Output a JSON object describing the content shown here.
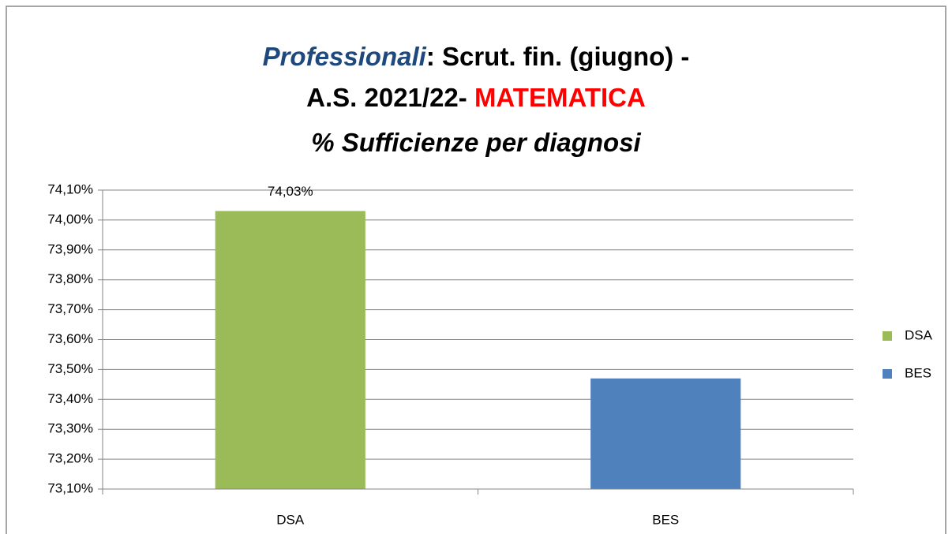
{
  "chart_data": {
    "type": "bar",
    "title": [
      "Professionali",
      ": Scrut. fin. (giugno) -",
      "A.S. 2021/22-",
      "MATEMATICA",
      "% Sufficienze per diagnosi"
    ],
    "categories": [
      "DSA",
      "BES"
    ],
    "series": [
      {
        "name": "DSA",
        "color": "#9bbb59",
        "values": [
          74.03,
          null
        ],
        "value_labels": [
          "74,03%",
          null
        ]
      },
      {
        "name": "BES",
        "color": "#4f81bd",
        "values": [
          null,
          73.47
        ]
      }
    ],
    "ylim": [
      73.1,
      74.1
    ],
    "yticks": [
      {
        "value": 73.1,
        "label": "73,10%"
      },
      {
        "value": 73.2,
        "label": "73,20%"
      },
      {
        "value": 73.3,
        "label": "73,30%"
      },
      {
        "value": 73.4,
        "label": "73,40%"
      },
      {
        "value": 73.5,
        "label": "73,50%"
      },
      {
        "value": 73.6,
        "label": "73,60%"
      },
      {
        "value": 73.7,
        "label": "73,70%"
      },
      {
        "value": 73.8,
        "label": "73,80%"
      },
      {
        "value": 73.9,
        "label": "73,90%"
      },
      {
        "value": 74.0,
        "label": "74,00%"
      },
      {
        "value": 74.1,
        "label": "74,10%"
      }
    ],
    "grid": true,
    "legend": "right"
  }
}
